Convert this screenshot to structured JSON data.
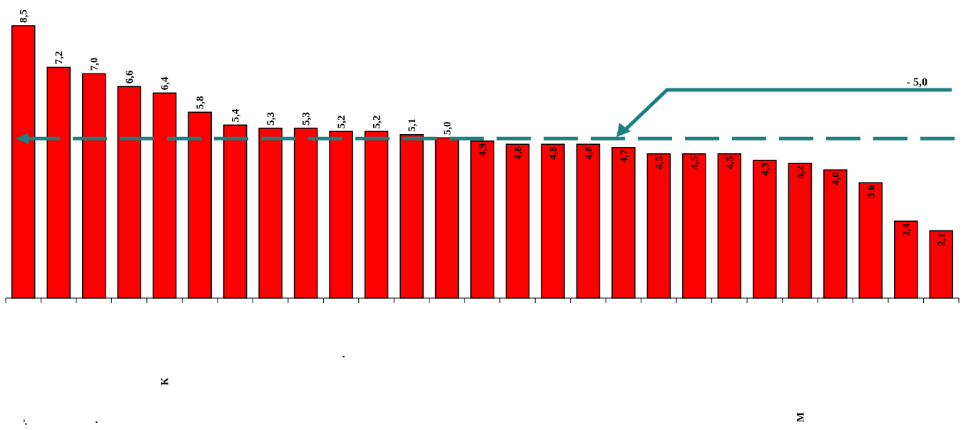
{
  "chart_data": {
    "type": "bar",
    "values": [
      8.5,
      7.2,
      7.0,
      6.6,
      6.4,
      5.8,
      5.4,
      5.3,
      5.3,
      5.2,
      5.2,
      5.1,
      5.0,
      4.9,
      4.8,
      4.8,
      4.8,
      4.7,
      4.5,
      4.5,
      4.5,
      4.3,
      4.2,
      4.0,
      3.6,
      2.4,
      2.1
    ],
    "value_labels": [
      "8,5",
      "7,2",
      "7,0",
      "6,6",
      "6,4",
      "5,8",
      "5,4",
      "5,3",
      "5,3",
      "5,2",
      "5,2",
      "5,1",
      "5,0",
      "4,9",
      "4,8",
      "4,8",
      "4,8",
      "4,7",
      "4,5",
      "4,5",
      "4,5",
      "4,3",
      "4,2",
      "4,0",
      "3,6",
      "2,4",
      "2,1"
    ],
    "categories": [
      ".-",
      "",
      ".",
      "",
      "К",
      "",
      "",
      "",
      "",
      ".",
      "",
      "",
      "",
      "",
      "",
      "",
      "",
      "",
      "",
      "",
      "",
      "",
      "М",
      "",
      "",
      "",
      ""
    ],
    "reference_line": {
      "value": 5.0,
      "label": "- 5,0"
    },
    "ylim": [
      0,
      8.5
    ],
    "bar_color": "#ff0000",
    "line_color": "#1a8080",
    "grid": false,
    "legend": "none"
  }
}
